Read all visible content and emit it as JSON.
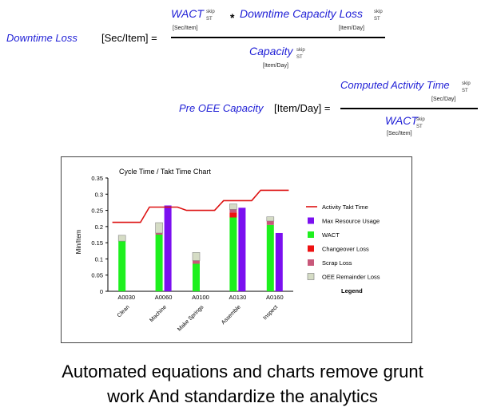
{
  "equation1": {
    "lhs": "Downtime Loss",
    "lhs_unit": "[Sec/Item] =",
    "num_term1": "WACT",
    "num_term1_sup": "skip",
    "num_term1_sub": "ST",
    "num_term1_unit": "[Sec/Item]",
    "times": "*",
    "num_term2": "Downtime Capacity Loss",
    "num_term2_sup": "skip",
    "num_term2_sub": "ST",
    "num_term2_unit": "[Item/Day]",
    "den_term": "Capacity",
    "den_sup": "skip",
    "den_sub": "ST",
    "den_unit": "[Item/Day]"
  },
  "equation2": {
    "lhs": "Pre OEE Capacity",
    "lhs_unit": "[Item/Day] =",
    "num_term": "Computed Activity Time",
    "num_sup": "skip",
    "num_sub": "ST",
    "num_unit": "[Sec/Day]",
    "den_term": "WACT",
    "den_sup": "skip",
    "den_sub": "ST",
    "den_unit": "[Sec/Item]"
  },
  "colors": {
    "equation_text": "#1f1fd6",
    "takt": "#dd1111",
    "max_resource": "#7b10f0",
    "wact": "#1ef01e",
    "changeover": "#ee1111",
    "scrap": "#c8587a",
    "oee_remainder": "#d5dcc5"
  },
  "chart_data": {
    "type": "bar",
    "title": "Cycle Time / Takt Time Chart",
    "ylabel": "Min/Item",
    "xlabel": "",
    "ylim": [
      0,
      0.35
    ],
    "yticks": [
      "0",
      "0.05",
      "0.1",
      "0.15",
      "0.2",
      "0.25",
      "0.3",
      "0.35"
    ],
    "categories": [
      "A0030",
      "A0060",
      "A0100",
      "A0130",
      "A0160"
    ],
    "category_sublabels": [
      "Clean",
      "Machine",
      "Make Springs",
      "Assemble",
      "Inspect"
    ],
    "stacked_series": [
      {
        "name": "WACT",
        "values": [
          0.155,
          0.175,
          0.085,
          0.228,
          0.205
        ]
      },
      {
        "name": "Changeover Loss",
        "values": [
          0,
          0,
          0,
          0.015,
          0
        ]
      },
      {
        "name": "Scrap Loss",
        "values": [
          0,
          0.005,
          0.01,
          0.01,
          0.012
        ]
      },
      {
        "name": "OEE Remainder Loss",
        "values": [
          0.018,
          0.032,
          0.025,
          0.017,
          0.013
        ]
      }
    ],
    "max_resource_usage": {
      "name": "Max Resource Usage",
      "values": [
        null,
        0.265,
        null,
        0.258,
        0.18
      ]
    },
    "takt_line": {
      "name": "Activity Takt Time",
      "values": [
        0.213,
        0.213,
        0.26,
        0.26,
        0.25,
        0.25,
        0.28,
        0.28,
        0.312,
        0.312
      ]
    },
    "legend_title": "Legend",
    "legend_position": "right",
    "legend": [
      "Activity Takt Time",
      "Max Resource Usage",
      "WACT",
      "Changeover Loss",
      "Scrap Loss",
      "OEE Remainder Loss"
    ]
  },
  "caption": {
    "line1": "Automated equations and charts remove grunt",
    "line2": "work And standardize the analytics"
  }
}
